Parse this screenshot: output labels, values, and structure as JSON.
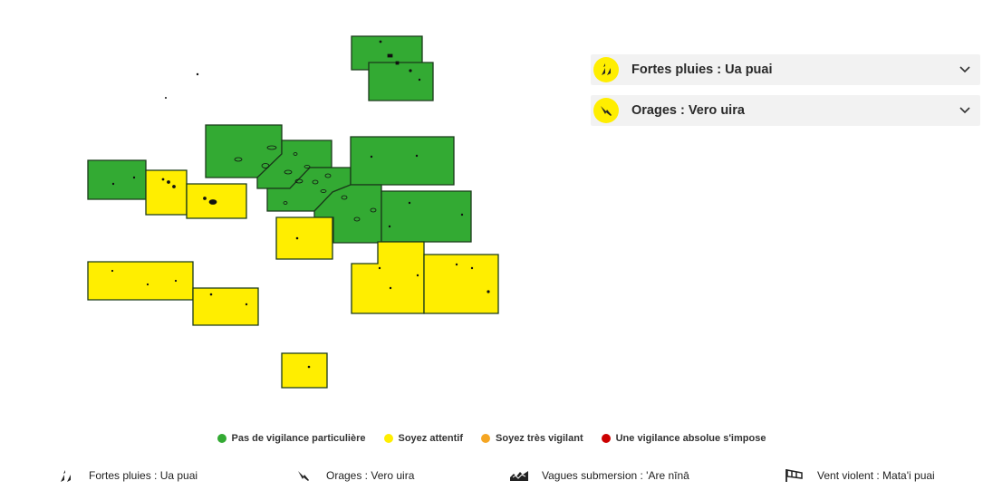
{
  "map": {
    "regions": [
      {
        "id": "marquises-nord",
        "level": "green"
      },
      {
        "id": "marquises-sud",
        "level": "green"
      },
      {
        "id": "iles-sous-le-vent",
        "level": "green"
      },
      {
        "id": "tuamotu-nord-ouest",
        "level": "green"
      },
      {
        "id": "tuamotu-centre",
        "level": "green"
      },
      {
        "id": "tuamotu-nord-est",
        "level": "green"
      },
      {
        "id": "tuamotu-est",
        "level": "green"
      },
      {
        "id": "tuamotu-sud-ouest",
        "level": "green"
      },
      {
        "id": "tuamotu-centre-sud",
        "level": "green"
      },
      {
        "id": "maupiti-ouest",
        "level": "green"
      },
      {
        "id": "iles-sous-le-vent-sud",
        "level": "yellow"
      },
      {
        "id": "tahiti-moorea",
        "level": "yellow"
      },
      {
        "id": "tuamotu-sud",
        "level": "yellow"
      },
      {
        "id": "gambier-ouest",
        "level": "yellow"
      },
      {
        "id": "gambier-est",
        "level": "yellow"
      },
      {
        "id": "australes-ouest",
        "level": "yellow"
      },
      {
        "id": "australes-centre",
        "level": "yellow"
      },
      {
        "id": "rapa",
        "level": "yellow"
      }
    ]
  },
  "colors": {
    "green": "#33aa33",
    "yellow": "#ffee00",
    "orange": "#f5a623",
    "red": "#cc0000",
    "border": "#1a3a1a"
  },
  "panels": [
    {
      "icon": "rain-icon",
      "title": "Fortes pluies : Ua puai"
    },
    {
      "icon": "lightning-icon",
      "title": "Orages : Vero uira"
    }
  ],
  "legend": [
    {
      "color": "#33aa33",
      "label": "Pas de vigilance particulière"
    },
    {
      "color": "#ffee00",
      "label": "Soyez attentif"
    },
    {
      "color": "#f5a623",
      "label": "Soyez très vigilant"
    },
    {
      "color": "#cc0000",
      "label": "Une vigilance absolue s'impose"
    }
  ],
  "phenomena": [
    {
      "icon": "rain-icon",
      "label": "Fortes pluies : Ua puai"
    },
    {
      "icon": "lightning-icon",
      "label": "Orages : Vero uira"
    },
    {
      "icon": "waves-icon",
      "label": "Vagues submersion : 'Are nīnā"
    },
    {
      "icon": "wind-icon",
      "label": "Vent violent : Mata'i puai"
    }
  ]
}
